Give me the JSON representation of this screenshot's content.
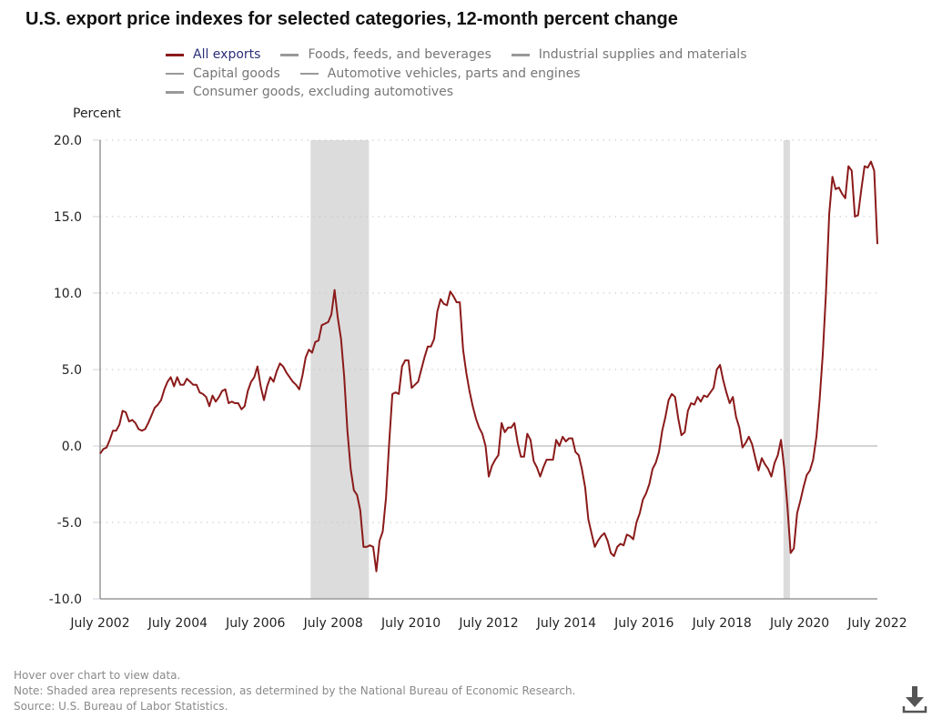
{
  "chart_data": {
    "type": "line",
    "title": "U.S. export price indexes for selected categories, 12-month percent change",
    "ylabel": "Percent",
    "xlabel": "",
    "ylim": [
      -10,
      20
    ],
    "yticks": [
      "20.0",
      "15.0",
      "10.0",
      "5.0",
      "0.0",
      "-5.0",
      "-10.0"
    ],
    "ytick_values": [
      20,
      15,
      10,
      5,
      0,
      -5,
      -10
    ],
    "xticks": [
      "July 2002",
      "July 2004",
      "July 2006",
      "July 2008",
      "July 2010",
      "July 2012",
      "July 2014",
      "July 2016",
      "July 2018",
      "July 2020",
      "July 2022"
    ],
    "x_start": "2002-07",
    "x_end": "2022-07",
    "grid": "horizontal-dotted",
    "legend_position": "top",
    "legend": [
      {
        "name": "All exports",
        "active": true,
        "color": "#8b1a1a"
      },
      {
        "name": "Foods, feeds, and beverages",
        "active": false,
        "color": "#999999"
      },
      {
        "name": "Industrial supplies and materials",
        "active": false,
        "color": "#999999"
      },
      {
        "name": "Capital goods",
        "active": false,
        "color": "#999999"
      },
      {
        "name": "Automotive vehicles, parts and engines",
        "active": false,
        "color": "#999999"
      },
      {
        "name": "Consumer goods, excluding automotives",
        "active": false,
        "color": "#999999"
      }
    ],
    "recessions": [
      {
        "start": "2007-12",
        "end": "2009-06"
      },
      {
        "start": "2020-02",
        "end": "2020-04"
      }
    ],
    "series": [
      {
        "name": "All exports",
        "color": "#8b1a1a",
        "values": [
          -0.5,
          -0.2,
          -0.1,
          0.4,
          1.0,
          1.0,
          1.4,
          2.3,
          2.2,
          1.6,
          1.7,
          1.5,
          1.1,
          1.0,
          1.1,
          1.5,
          2.0,
          2.5,
          2.7,
          3.0,
          3.7,
          4.2,
          4.5,
          3.9,
          4.5,
          4.0,
          4.0,
          4.4,
          4.2,
          4.0,
          4.0,
          3.5,
          3.4,
          3.2,
          2.6,
          3.3,
          2.9,
          3.2,
          3.6,
          3.7,
          2.8,
          2.9,
          2.8,
          2.8,
          2.4,
          2.6,
          3.6,
          4.2,
          4.5,
          5.2,
          3.9,
          3.0,
          3.9,
          4.5,
          4.2,
          4.9,
          5.4,
          5.2,
          4.8,
          4.5,
          4.2,
          4.0,
          3.7,
          4.6,
          5.8,
          6.3,
          6.1,
          6.8,
          6.9,
          7.9,
          8.0,
          8.1,
          8.6,
          10.2,
          8.4,
          7.0,
          4.5,
          1.0,
          -1.5,
          -2.9,
          -3.2,
          -4.2,
          -6.6,
          -6.6,
          -6.5,
          -6.6,
          -8.2,
          -6.2,
          -5.6,
          -3.4,
          0.2,
          3.4,
          3.5,
          3.4,
          5.2,
          5.6,
          5.6,
          3.8,
          4.0,
          4.2,
          5.0,
          5.8,
          6.5,
          6.5,
          7.0,
          8.8,
          9.6,
          9.3,
          9.2,
          10.1,
          9.8,
          9.4,
          9.4,
          6.3,
          4.8,
          3.6,
          2.6,
          1.8,
          1.2,
          0.8,
          0.0,
          -2.0,
          -1.3,
          -0.9,
          -0.6,
          1.5,
          0.9,
          1.2,
          1.2,
          1.5,
          0.2,
          -0.7,
          -0.7,
          0.8,
          0.4,
          -1.0,
          -1.4,
          -2.0,
          -1.4,
          -0.9,
          -0.9,
          -0.9,
          0.4,
          0.0,
          0.6,
          0.3,
          0.5,
          0.5,
          -0.4,
          -0.6,
          -1.5,
          -2.7,
          -4.8,
          -5.7,
          -6.6,
          -6.2,
          -5.9,
          -5.7,
          -6.2,
          -7.0,
          -7.2,
          -6.6,
          -6.4,
          -6.5,
          -5.8,
          -5.9,
          -6.1,
          -5.0,
          -4.4,
          -3.5,
          -3.1,
          -2.5,
          -1.5,
          -1.1,
          -0.4,
          1.0,
          1.9,
          3.0,
          3.4,
          3.2,
          1.8,
          0.7,
          0.9,
          2.3,
          2.8,
          2.7,
          3.2,
          2.9,
          3.3,
          3.2,
          3.5,
          3.8,
          5.0,
          5.3,
          4.3,
          3.5,
          2.8,
          3.2,
          1.9,
          1.2,
          -0.1,
          0.2,
          0.6,
          0.1,
          -0.8,
          -1.6,
          -0.8,
          -1.2,
          -1.5,
          -2.0,
          -1.1,
          -0.6,
          0.4,
          -1.5,
          -4.0,
          -7.0,
          -6.7,
          -4.4,
          -3.6,
          -2.7,
          -1.9,
          -1.6,
          -0.9,
          0.6,
          3.0,
          6.0,
          10.0,
          15.2,
          17.6,
          16.8,
          16.9,
          16.5,
          16.2,
          18.3,
          18.0,
          15.0,
          15.1,
          16.8,
          18.3,
          18.2,
          18.6,
          18.0,
          13.2
        ]
      }
    ]
  },
  "footer": {
    "hover": "Hover over chart to view data.",
    "note": "Note: Shaded area represents recession, as determined by the National Bureau of Economic Research.",
    "source": "Source: U.S. Bureau of Labor Statistics."
  },
  "icons": {
    "download": "download-icon"
  }
}
